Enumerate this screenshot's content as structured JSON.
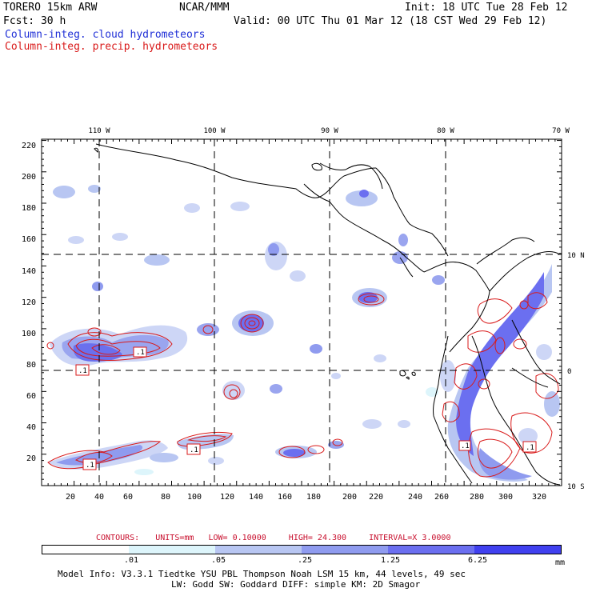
{
  "header": {
    "model": "TORERO  15km ARW",
    "org": "NCAR/MMM",
    "init": "Init: 18 UTC Tue 28 Feb 12",
    "fcst": "Fcst:   30 h",
    "valid": "Valid: 00 UTC Thu 01 Mar 12 (18 CST Wed 29 Feb 12)",
    "field1": "Column-integ. cloud hydrometeors",
    "field2": "Column-integ. precip. hydrometeors"
  },
  "colors": {
    "field1": "#1f2fd6",
    "field2": "#d91a1a",
    "land": "#000000",
    "grid": "#000000"
  },
  "map": {
    "lon_labels": [
      "110 W",
      "100 W",
      "90 W",
      "80 W",
      "70 W"
    ],
    "lat_labels": [
      "10 N",
      "0",
      "10 S"
    ],
    "x_ticks": [
      "20",
      "40",
      "60",
      "80",
      "100",
      "120",
      "140",
      "160",
      "180",
      "200",
      "220",
      "240",
      "260",
      "280",
      "300",
      "320"
    ],
    "y_ticks": [
      "220",
      "200",
      "180",
      "160",
      "140",
      "120",
      "100",
      "80",
      "60",
      "40",
      "20"
    ],
    "contour_labels": [
      ".1",
      ".1",
      ".1",
      ".1",
      ".1",
      ".1"
    ]
  },
  "legend": {
    "contours_label": "CONTOURS:",
    "units": "UNITS=mm",
    "low": "LOW= 0.10000",
    "high": "HIGH=  24.300",
    "interval": "INTERVAL=X  3.0000",
    "colorbar_labels": [
      ".01",
      ".05",
      ".25",
      "1.25",
      "6.25",
      "mm"
    ],
    "colorbar_colors": [
      "#ffffff",
      "#ddf5fb",
      "#b8c6f2",
      "#8f9bef",
      "#6b6ff0",
      "#4040ef"
    ]
  },
  "footer": {
    "line1": "Model Info: V3.3.1    Tiedtke YSU PBL   Thompson     Noah LSM  15 km,   44 levels,   49 sec",
    "line2": "LW: Godd SW: Goddard DIFF: simple KM: 2D Smagor"
  }
}
